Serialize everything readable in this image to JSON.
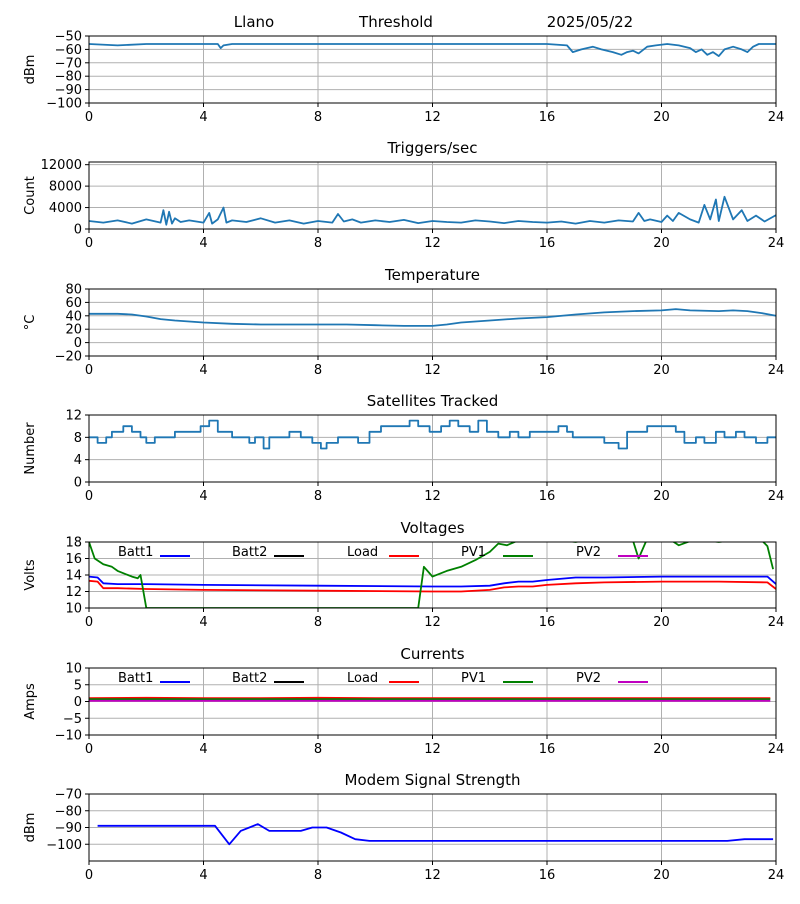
{
  "header": {
    "site": "Llano",
    "threshold_label": "Threshold",
    "date": "2025/05/22"
  },
  "colors": {
    "series": "#1f77b4",
    "batt1": "#0000ff",
    "batt2": "#000000",
    "load": "#ff0000",
    "pv1": "#008000",
    "pv2": "#c000c0",
    "grid": "#b0b0b0"
  },
  "chart_data": [
    {
      "type": "line",
      "title": "",
      "ylabel": "dBm",
      "xlim": [
        0,
        24
      ],
      "ylim": [
        -100,
        -50
      ],
      "xticks": [
        0,
        4,
        8,
        12,
        16,
        20,
        24
      ],
      "yticks": [
        -100,
        -90,
        -80,
        -70,
        -60,
        -50
      ],
      "series": [
        {
          "color": "#1f77b4",
          "x": [
            0,
            1,
            2,
            3,
            4,
            4.5,
            4.6,
            4.7,
            5,
            8,
            12,
            14,
            16,
            16.7,
            16.9,
            17.2,
            17.6,
            17.9,
            18.3,
            18.6,
            18.8,
            19,
            19.2,
            19.5,
            19.8,
            20.2,
            20.6,
            21,
            21.2,
            21.4,
            21.6,
            21.8,
            22,
            22.2,
            22.5,
            22.8,
            23,
            23.2,
            23.4,
            24
          ],
          "y": [
            -56,
            -57,
            -56,
            -56,
            -56,
            -56,
            -59,
            -57,
            -56,
            -56,
            -56,
            -56,
            -56,
            -57,
            -62,
            -60,
            -58,
            -60,
            -62,
            -64,
            -62,
            -61,
            -63,
            -58,
            -57,
            -56,
            -57,
            -59,
            -62,
            -60,
            -64,
            -62,
            -65,
            -60,
            -58,
            -60,
            -62,
            -58,
            -56,
            -56
          ]
        }
      ],
      "grid": true
    },
    {
      "type": "line",
      "title": "Triggers/sec",
      "ylabel": "Count",
      "xlim": [
        0,
        24
      ],
      "ylim": [
        0,
        12500
      ],
      "xticks": [
        0,
        4,
        8,
        12,
        16,
        20,
        24
      ],
      "yticks": [
        0,
        4000,
        8000,
        12000
      ],
      "series": [
        {
          "color": "#1f77b4",
          "x": [
            0,
            0.5,
            1,
            1.5,
            2,
            2.5,
            2.6,
            2.7,
            2.8,
            2.9,
            3.0,
            3.2,
            3.5,
            4,
            4.2,
            4.3,
            4.5,
            4.7,
            4.8,
            5,
            5.5,
            6,
            6.5,
            7,
            7.5,
            8,
            8.5,
            8.7,
            8.9,
            9.2,
            9.5,
            10,
            10.5,
            11,
            11.5,
            12,
            12.5,
            13,
            13.5,
            14,
            14.5,
            15,
            15.5,
            16,
            16.5,
            17,
            17.5,
            18,
            18.5,
            19,
            19.2,
            19.4,
            19.6,
            20,
            20.2,
            20.4,
            20.6,
            21,
            21.3,
            21.5,
            21.7,
            21.9,
            22,
            22.2,
            22.5,
            22.8,
            23,
            23.3,
            23.6,
            24
          ],
          "y": [
            1500,
            1200,
            1600,
            1000,
            1800,
            1200,
            3500,
            800,
            3200,
            1000,
            2000,
            1300,
            1600,
            1200,
            3000,
            1000,
            1800,
            4000,
            1200,
            1600,
            1300,
            2000,
            1200,
            1600,
            1000,
            1500,
            1200,
            2800,
            1400,
            1800,
            1200,
            1600,
            1300,
            1700,
            1100,
            1500,
            1300,
            1200,
            1600,
            1400,
            1100,
            1500,
            1300,
            1200,
            1400,
            1000,
            1500,
            1200,
            1600,
            1400,
            3000,
            1500,
            1800,
            1300,
            2500,
            1500,
            3000,
            1800,
            1200,
            4500,
            1800,
            5500,
            1500,
            6000,
            1800,
            3500,
            1500,
            2500,
            1400,
            2600
          ]
        }
      ],
      "grid": true
    },
    {
      "type": "line",
      "title": "Temperature",
      "ylabel": "°C",
      "xlim": [
        0,
        24
      ],
      "ylim": [
        -20,
        80
      ],
      "xticks": [
        0,
        4,
        8,
        12,
        16,
        20,
        24
      ],
      "yticks": [
        -20,
        0,
        20,
        40,
        60,
        80
      ],
      "series": [
        {
          "color": "#1f77b4",
          "x": [
            0,
            1,
            1.5,
            2,
            2.5,
            3,
            4,
            5,
            6,
            7,
            8,
            9,
            10,
            11,
            12,
            12.5,
            13,
            14,
            15,
            16,
            17,
            18,
            19,
            20,
            20.5,
            21,
            22,
            22.5,
            23,
            23.5,
            24
          ],
          "y": [
            43,
            43,
            42,
            39,
            35,
            33,
            30,
            28,
            27,
            27,
            27,
            27,
            26,
            25,
            25,
            27,
            30,
            33,
            36,
            38,
            42,
            45,
            47,
            48,
            50,
            48,
            47,
            48,
            47,
            44,
            40
          ]
        }
      ],
      "grid": true
    },
    {
      "type": "line",
      "title": "Satellites Tracked",
      "ylabel": "Number",
      "xlim": [
        0,
        24
      ],
      "ylim": [
        0,
        12
      ],
      "xticks": [
        0,
        4,
        8,
        12,
        16,
        20,
        24
      ],
      "yticks": [
        0,
        4,
        8,
        12
      ],
      "step": true,
      "series": [
        {
          "color": "#1f77b4",
          "x": [
            0,
            0.3,
            0.6,
            0.8,
            1,
            1.2,
            1.5,
            1.8,
            2.0,
            2.3,
            2.7,
            3,
            3.5,
            3.9,
            4.2,
            4.5,
            5,
            5.3,
            5.6,
            5.8,
            6.1,
            6.3,
            6.5,
            7,
            7.4,
            7.8,
            8.1,
            8.3,
            8.7,
            9.1,
            9.4,
            9.8,
            10.2,
            10.7,
            11.2,
            11.5,
            11.9,
            12.3,
            12.6,
            12.9,
            13.3,
            13.6,
            13.9,
            14.3,
            14.7,
            15.0,
            15.4,
            15.9,
            16.4,
            16.7,
            16.9,
            17.1,
            17.5,
            18,
            18.5,
            18.8,
            19.2,
            19.5,
            20,
            20.5,
            20.8,
            21.2,
            21.5,
            21.9,
            22.2,
            22.6,
            22.9,
            23.3,
            23.7,
            24
          ],
          "y": [
            8,
            7,
            8,
            9,
            9,
            10,
            9,
            8,
            7,
            8,
            8,
            9,
            9,
            10,
            11,
            9,
            8,
            8,
            7,
            8,
            6,
            8,
            8,
            9,
            8,
            7,
            6,
            7,
            8,
            8,
            7,
            9,
            10,
            10,
            11,
            10,
            9,
            10,
            11,
            10,
            9,
            11,
            9,
            8,
            9,
            8,
            9,
            9,
            10,
            9,
            8,
            8,
            8,
            7,
            6,
            9,
            9,
            10,
            10,
            9,
            7,
            8,
            7,
            9,
            8,
            9,
            8,
            7,
            8,
            8
          ]
        }
      ],
      "grid": true
    },
    {
      "type": "line",
      "title": "Voltages",
      "ylabel": "Volts",
      "xlim": [
        0,
        24
      ],
      "ylim": [
        10,
        18
      ],
      "xticks": [
        0,
        4,
        8,
        12,
        16,
        20,
        24
      ],
      "yticks": [
        10,
        12,
        14,
        16,
        18
      ],
      "legend": "top",
      "series": [
        {
          "name": "Batt1",
          "color": "#0000ff",
          "x": [
            0,
            0.3,
            0.5,
            1,
            2,
            4,
            8,
            12,
            13,
            14,
            14.5,
            15,
            15.5,
            16,
            17,
            18,
            20,
            22,
            23.7,
            24
          ],
          "y": [
            13.8,
            13.7,
            13.0,
            12.9,
            12.9,
            12.8,
            12.7,
            12.6,
            12.6,
            12.7,
            13.0,
            13.2,
            13.2,
            13.4,
            13.7,
            13.7,
            13.8,
            13.8,
            13.8,
            12.9
          ]
        },
        {
          "name": "Batt2",
          "color": "#000000",
          "x": [],
          "y": []
        },
        {
          "name": "Load",
          "color": "#ff0000",
          "x": [
            0,
            0.3,
            0.5,
            1,
            2,
            4,
            8,
            12,
            13,
            14,
            14.5,
            15,
            15.5,
            16,
            17,
            18,
            20,
            22,
            23.7,
            24
          ],
          "y": [
            13.3,
            13.2,
            12.4,
            12.4,
            12.3,
            12.2,
            12.1,
            12.0,
            12.0,
            12.2,
            12.5,
            12.6,
            12.6,
            12.8,
            13.0,
            13.1,
            13.2,
            13.2,
            13.1,
            12.3
          ]
        },
        {
          "name": "PV1",
          "color": "#008000",
          "x": [
            0,
            0.2,
            0.5,
            0.8,
            1,
            1.5,
            1.7,
            1.8,
            1.9,
            2.0,
            11.5,
            11.7,
            12,
            12.5,
            13,
            13.5,
            14,
            14.3,
            14.6,
            15,
            15.5,
            16,
            16.5,
            17,
            17.5,
            18,
            18.5,
            19,
            19.2,
            19.5,
            19.8,
            20.3,
            20.6,
            21,
            21.5,
            22,
            22.5,
            23,
            23.5,
            23.7,
            23.9
          ],
          "y": [
            18.0,
            16.0,
            15.3,
            15.0,
            14.5,
            13.8,
            13.6,
            14.0,
            12.0,
            10.0,
            10.0,
            15.0,
            13.8,
            14.5,
            15.0,
            15.8,
            16.8,
            17.8,
            17.6,
            18.2,
            18.1,
            18.3,
            18.2,
            18.0,
            18.3,
            18.2,
            18.1,
            18.2,
            16.0,
            18.4,
            18.2,
            18.3,
            17.6,
            18.1,
            18.2,
            18.0,
            18.2,
            18.3,
            18.2,
            17.5,
            14.7
          ]
        },
        {
          "name": "PV2",
          "color": "#c000c0",
          "x": [],
          "y": []
        }
      ],
      "grid": true
    },
    {
      "type": "line",
      "title": "Currents",
      "ylabel": "Amps",
      "xlim": [
        0,
        24
      ],
      "ylim": [
        -10,
        10
      ],
      "xticks": [
        0,
        4,
        8,
        12,
        16,
        20,
        24
      ],
      "yticks": [
        -10,
        -5,
        0,
        5,
        10
      ],
      "legend": "top",
      "series": [
        {
          "name": "Batt1",
          "color": "#0000ff",
          "x": [],
          "y": []
        },
        {
          "name": "Batt2",
          "color": "#000000",
          "x": [],
          "y": []
        },
        {
          "name": "Load",
          "color": "#ff0000",
          "x": [
            0,
            2,
            4,
            6,
            8,
            10,
            12,
            14,
            16,
            18,
            20,
            22,
            23.8
          ],
          "y": [
            1.0,
            1.1,
            1.0,
            1.0,
            1.1,
            1.0,
            1.0,
            1.0,
            1.0,
            1.0,
            1.0,
            1.0,
            1.0
          ]
        },
        {
          "name": "PV1",
          "color": "#008000",
          "x": [
            0,
            4,
            8,
            12,
            16,
            20,
            23.8
          ],
          "y": [
            0.7,
            0.7,
            0.7,
            0.7,
            0.7,
            0.7,
            0.7
          ]
        },
        {
          "name": "PV2",
          "color": "#c000c0",
          "x": [
            0,
            4,
            8,
            12,
            16,
            20,
            23.8
          ],
          "y": [
            0.2,
            0.2,
            0.2,
            0.2,
            0.2,
            0.2,
            0.2
          ]
        }
      ],
      "grid": true
    },
    {
      "type": "line",
      "title": "Modem Signal Strength",
      "ylabel": "dBm",
      "xlim": [
        0,
        24
      ],
      "ylim": [
        -110,
        -70
      ],
      "xticks": [
        0,
        4,
        8,
        12,
        16,
        20,
        24
      ],
      "yticks": [
        -100,
        -90,
        -80,
        -70
      ],
      "series": [
        {
          "color": "#0000ff",
          "x": [
            0.3,
            1,
            2,
            3,
            4,
            4.4,
            4.9,
            5.3,
            5.9,
            6.3,
            7,
            7.4,
            7.8,
            8.3,
            8.8,
            9.3,
            9.8,
            10.5,
            12,
            14,
            16,
            18,
            20,
            22.3,
            22.9,
            23.5,
            23.9
          ],
          "y": [
            -89,
            -89,
            -89,
            -89,
            -89,
            -89,
            -100,
            -92,
            -88,
            -92,
            -92,
            -92,
            -90,
            -90,
            -93,
            -97,
            -98,
            -98,
            -98,
            -98,
            -98,
            -98,
            -98,
            -98,
            -97,
            -97,
            -97
          ]
        }
      ],
      "grid": true
    }
  ]
}
